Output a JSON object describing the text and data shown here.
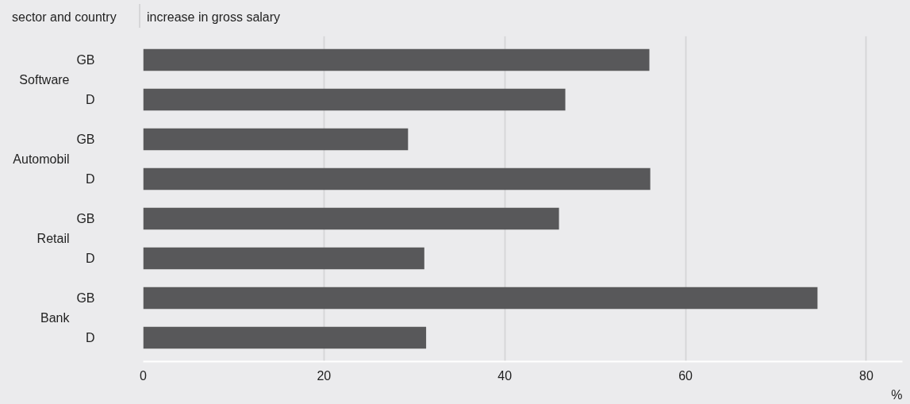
{
  "chart_data": {
    "type": "bar",
    "orientation": "horizontal",
    "title": "increase in gross salary",
    "ylabel": "sector and country",
    "xlabel": "%",
    "categories": [
      "GB",
      "D",
      "GB",
      "D",
      "GB",
      "D",
      "GB",
      "D"
    ],
    "annotations": [
      "Software",
      "Automobil",
      "Retail",
      "Bank"
    ],
    "values": [
      56,
      46.7,
      29.3,
      56.1,
      46,
      31.1,
      74.6,
      31.3
    ],
    "color": "#58585a",
    "xlim": [
      0,
      84
    ],
    "xticks": [
      0,
      20,
      40,
      60,
      80
    ],
    "grid": "x"
  }
}
